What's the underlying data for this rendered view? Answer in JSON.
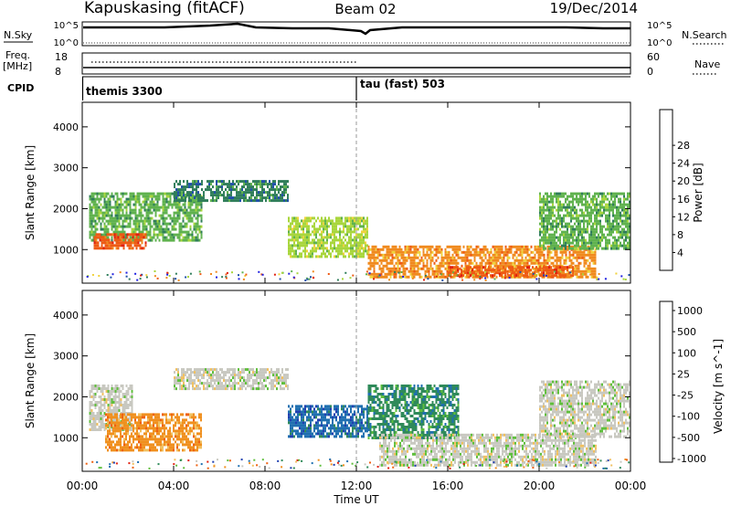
{
  "header": {
    "station": "Kapuskasing (fitACF)",
    "beam": "Beam 02",
    "date": "19/Dec/2014"
  },
  "noise_panel": {
    "left_label": "N.Sky",
    "right_label": "N.Search",
    "left_ticks": [
      "10^5",
      "10^0"
    ],
    "right_ticks": [
      "10^5",
      "10^0"
    ]
  },
  "freq_panel": {
    "left_label_1": "Freq.",
    "left_label_2": "[MHz]",
    "right_label": "Nave",
    "left_ticks": [
      "18",
      "8"
    ],
    "right_ticks": [
      "60",
      "0"
    ]
  },
  "cpid_panel": {
    "label": "CPID",
    "programs": [
      {
        "name": "themis 3300",
        "start": "00:00"
      },
      {
        "name": "tau (fast) 503",
        "start": "12:00"
      }
    ]
  },
  "chart_data": [
    {
      "type": "heatmap",
      "panel": "power",
      "xlabel": "",
      "ylabel": "Slant Range [km]",
      "x_range": [
        "00:00",
        "24:00"
      ],
      "ylim": [
        180,
        4600
      ],
      "y_ticks": [
        1000,
        2000,
        3000,
        4000
      ],
      "colorbar_label": "Power [dB]",
      "colorbar_ticks": [
        4,
        8,
        12,
        16,
        20,
        24,
        28
      ],
      "colorbar_colors": [
        "#2020e0",
        "#1f4fa8",
        "#2f7d5a",
        "#5fb24e",
        "#a8d63c",
        "#f0d23c",
        "#f08a1e",
        "#ee5a14",
        "#e02010"
      ],
      "echo_regions": [
        {
          "start_hr": 0.3,
          "end_hr": 5.2,
          "range_km": [
            1200,
            2400
          ],
          "power_db": 12
        },
        {
          "start_hr": 0.5,
          "end_hr": 2.8,
          "range_km": [
            1000,
            1400
          ],
          "power_db": 28
        },
        {
          "start_hr": 4.0,
          "end_hr": 9.0,
          "range_km": [
            2200,
            2700
          ],
          "power_db": 8
        },
        {
          "start_hr": 9.0,
          "end_hr": 12.5,
          "range_km": [
            800,
            1800
          ],
          "power_db": 18
        },
        {
          "start_hr": 12.5,
          "end_hr": 22.5,
          "range_km": [
            300,
            1100
          ],
          "power_db": 24
        },
        {
          "start_hr": 16.0,
          "end_hr": 21.5,
          "range_km": [
            350,
            600
          ],
          "power_db": 28
        },
        {
          "start_hr": 20.0,
          "end_hr": 24.0,
          "range_km": [
            1000,
            2400
          ],
          "power_db": 14
        }
      ]
    },
    {
      "type": "heatmap",
      "panel": "velocity",
      "xlabel": "Time UT",
      "ylabel": "Slant Range [km]",
      "x_range": [
        "00:00",
        "24:00"
      ],
      "ylim": [
        180,
        4600
      ],
      "y_ticks": [
        1000,
        2000,
        3000,
        4000
      ],
      "colorbar_label": "Velocity [m s^-1]",
      "colorbar_ticks": [
        1000,
        500,
        100,
        25,
        -25,
        -100,
        -500,
        -1000
      ],
      "colorbar_colors": [
        "#1f3fb0",
        "#1f6fb0",
        "#2f8a5a",
        "#5fbf3c",
        "#c8c8c0",
        "#f0c060",
        "#f0901e",
        "#ee6010",
        "#e02010"
      ],
      "echo_regions": [
        {
          "start_hr": 0.3,
          "end_hr": 2.2,
          "range_km": [
            1200,
            2300
          ],
          "velocity_ms": -25
        },
        {
          "start_hr": 1.0,
          "end_hr": 5.2,
          "range_km": [
            700,
            1600
          ],
          "velocity_ms": -500
        },
        {
          "start_hr": 4.0,
          "end_hr": 9.0,
          "range_km": [
            2200,
            2700
          ],
          "velocity_ms": 0
        },
        {
          "start_hr": 9.0,
          "end_hr": 12.5,
          "range_km": [
            1000,
            1800
          ],
          "velocity_ms": 100
        },
        {
          "start_hr": 12.5,
          "end_hr": 16.5,
          "range_km": [
            1000,
            2300
          ],
          "velocity_ms": 25
        },
        {
          "start_hr": 13.0,
          "end_hr": 22.5,
          "range_km": [
            300,
            1100
          ],
          "velocity_ms": 0
        },
        {
          "start_hr": 20.0,
          "end_hr": 24.0,
          "range_km": [
            1000,
            2400
          ],
          "velocity_ms": 0
        }
      ]
    }
  ],
  "time_axis": {
    "label": "Time UT",
    "ticks": [
      "00:00",
      "04:00",
      "08:00",
      "12:00",
      "16:00",
      "20:00",
      "00:00"
    ]
  }
}
